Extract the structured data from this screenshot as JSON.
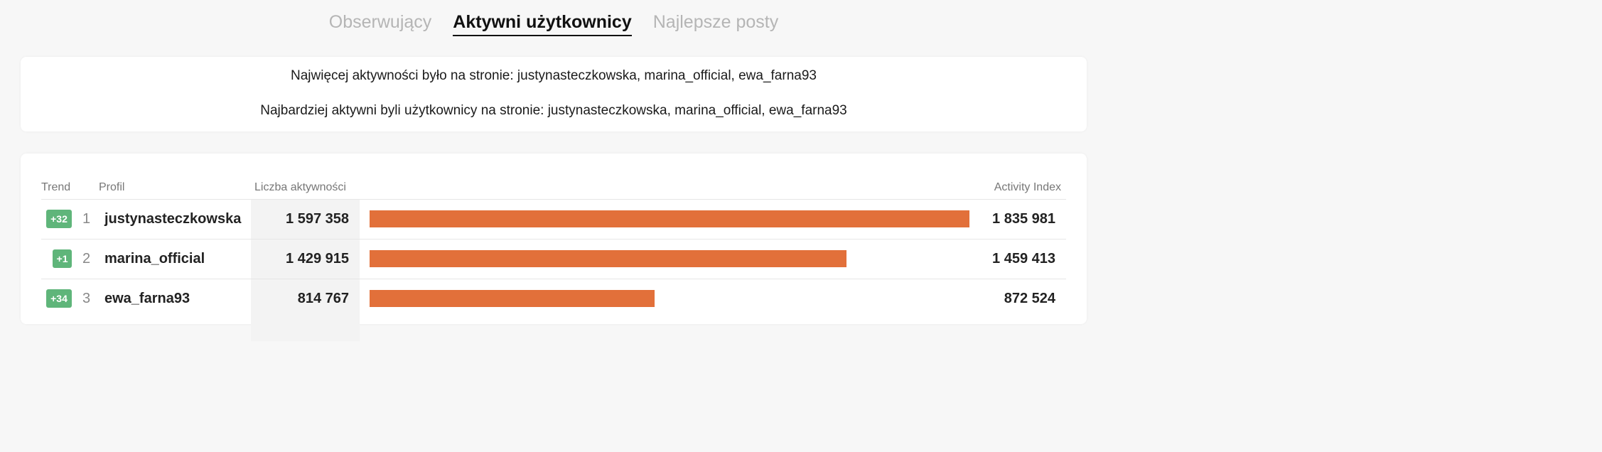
{
  "tabs": [
    {
      "label": "Obserwujący",
      "active": false
    },
    {
      "label": "Aktywni użytkownicy",
      "active": true
    },
    {
      "label": "Najlepsze posty",
      "active": false
    }
  ],
  "summary": {
    "line1": "Najwięcej aktywności było na stronie: justynasteczkowska, marina_official, ewa_farna93",
    "line2": "Najbardziej aktywni byli użytkownicy na stronie: justynasteczkowska, marina_official, ewa_farna93"
  },
  "table": {
    "headers": {
      "trend": "Trend",
      "profile": "Profil",
      "count": "Liczba aktywności",
      "index": "Activity Index"
    },
    "bar_color": "#e2703a",
    "badge_color": "#5fb57a",
    "rows": [
      {
        "trend": "+32",
        "rank": "1",
        "profile": "justynasteczkowska",
        "count": "1 597 358",
        "index": "1 835 981",
        "index_value": 1835981
      },
      {
        "trend": "+1",
        "rank": "2",
        "profile": "marina_official",
        "count": "1 429 915",
        "index": "1 459 413",
        "index_value": 1459413
      },
      {
        "trend": "+34",
        "rank": "3",
        "profile": "ewa_farna93",
        "count": "814 767",
        "index": "872 524",
        "index_value": 872524
      }
    ]
  }
}
